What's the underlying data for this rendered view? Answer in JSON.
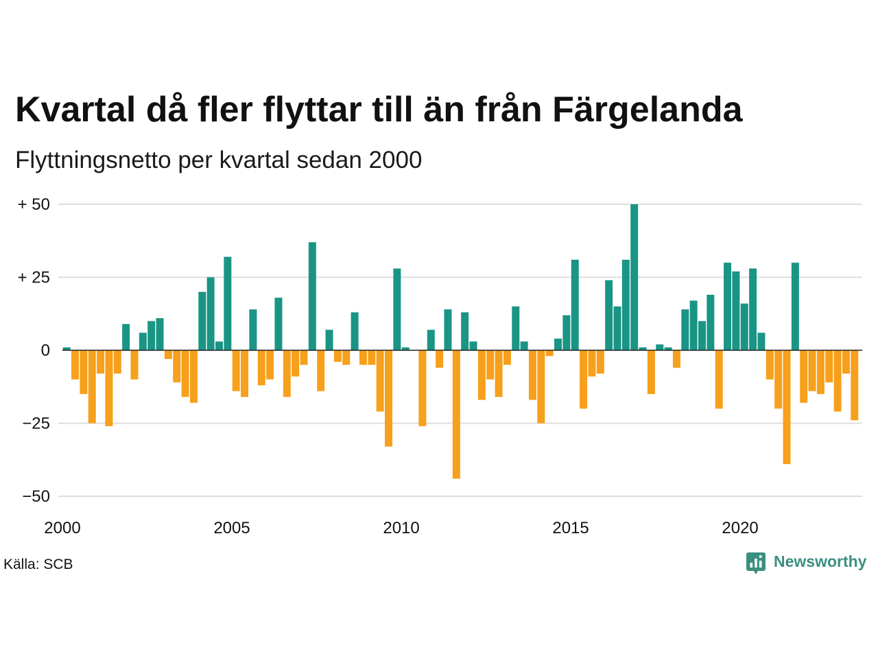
{
  "chart_data": {
    "type": "bar",
    "title": "Kvartal då fler flyttar till än från Färgelanda",
    "subtitle": "Flyttningsnetto per kvartal sedan 2000",
    "xlim": [
      2000,
      2023.5
    ],
    "ylim": [
      -50,
      50
    ],
    "grid": true,
    "legend": "none",
    "xticks": [
      {
        "value": 2000,
        "label": "2000"
      },
      {
        "value": 2005,
        "label": "2005"
      },
      {
        "value": 2010,
        "label": "2010"
      },
      {
        "value": 2015,
        "label": "2015"
      },
      {
        "value": 2020,
        "label": "2020"
      }
    ],
    "yticks": [
      {
        "value": 50,
        "label": "+ 50"
      },
      {
        "value": 25,
        "label": "+ 25"
      },
      {
        "value": 0,
        "label": "0"
      },
      {
        "value": -25,
        "label": "−25"
      },
      {
        "value": -50,
        "label": "−50"
      }
    ],
    "colors": {
      "positive": "#1a9585",
      "negative": "#f7a01c",
      "grid": "#dddddd",
      "zero_line": "#222222"
    },
    "points": [
      {
        "year": 2000,
        "quarter": 1,
        "value": 1
      },
      {
        "year": 2000,
        "quarter": 2,
        "value": -10
      },
      {
        "year": 2000,
        "quarter": 3,
        "value": -15
      },
      {
        "year": 2000,
        "quarter": 4,
        "value": -25
      },
      {
        "year": 2001,
        "quarter": 1,
        "value": -8
      },
      {
        "year": 2001,
        "quarter": 2,
        "value": -26
      },
      {
        "year": 2001,
        "quarter": 3,
        "value": -8
      },
      {
        "year": 2001,
        "quarter": 4,
        "value": 9
      },
      {
        "year": 2002,
        "quarter": 1,
        "value": -10
      },
      {
        "year": 2002,
        "quarter": 2,
        "value": 6
      },
      {
        "year": 2002,
        "quarter": 3,
        "value": 10
      },
      {
        "year": 2002,
        "quarter": 4,
        "value": 11
      },
      {
        "year": 2003,
        "quarter": 1,
        "value": -3
      },
      {
        "year": 2003,
        "quarter": 2,
        "value": -11
      },
      {
        "year": 2003,
        "quarter": 3,
        "value": -16
      },
      {
        "year": 2003,
        "quarter": 4,
        "value": -18
      },
      {
        "year": 2004,
        "quarter": 1,
        "value": 20
      },
      {
        "year": 2004,
        "quarter": 2,
        "value": 25
      },
      {
        "year": 2004,
        "quarter": 3,
        "value": 3
      },
      {
        "year": 2004,
        "quarter": 4,
        "value": 32
      },
      {
        "year": 2005,
        "quarter": 1,
        "value": -14
      },
      {
        "year": 2005,
        "quarter": 2,
        "value": -16
      },
      {
        "year": 2005,
        "quarter": 3,
        "value": 14
      },
      {
        "year": 2005,
        "quarter": 4,
        "value": -12
      },
      {
        "year": 2006,
        "quarter": 1,
        "value": -10
      },
      {
        "year": 2006,
        "quarter": 2,
        "value": 18
      },
      {
        "year": 2006,
        "quarter": 3,
        "value": -16
      },
      {
        "year": 2006,
        "quarter": 4,
        "value": -9
      },
      {
        "year": 2007,
        "quarter": 1,
        "value": -5
      },
      {
        "year": 2007,
        "quarter": 2,
        "value": 37
      },
      {
        "year": 2007,
        "quarter": 3,
        "value": -14
      },
      {
        "year": 2007,
        "quarter": 4,
        "value": 7
      },
      {
        "year": 2008,
        "quarter": 1,
        "value": -4
      },
      {
        "year": 2008,
        "quarter": 2,
        "value": -5
      },
      {
        "year": 2008,
        "quarter": 3,
        "value": 13
      },
      {
        "year": 2008,
        "quarter": 4,
        "value": -5
      },
      {
        "year": 2009,
        "quarter": 1,
        "value": -5
      },
      {
        "year": 2009,
        "quarter": 2,
        "value": -21
      },
      {
        "year": 2009,
        "quarter": 3,
        "value": -33
      },
      {
        "year": 2009,
        "quarter": 4,
        "value": 28
      },
      {
        "year": 2010,
        "quarter": 1,
        "value": 1
      },
      {
        "year": 2010,
        "quarter": 2,
        "value": 0
      },
      {
        "year": 2010,
        "quarter": 3,
        "value": -26
      },
      {
        "year": 2010,
        "quarter": 4,
        "value": 7
      },
      {
        "year": 2011,
        "quarter": 1,
        "value": -6
      },
      {
        "year": 2011,
        "quarter": 2,
        "value": 14
      },
      {
        "year": 2011,
        "quarter": 3,
        "value": -44
      },
      {
        "year": 2011,
        "quarter": 4,
        "value": 13
      },
      {
        "year": 2012,
        "quarter": 1,
        "value": 3
      },
      {
        "year": 2012,
        "quarter": 2,
        "value": -17
      },
      {
        "year": 2012,
        "quarter": 3,
        "value": -10
      },
      {
        "year": 2012,
        "quarter": 4,
        "value": -16
      },
      {
        "year": 2013,
        "quarter": 1,
        "value": -5
      },
      {
        "year": 2013,
        "quarter": 2,
        "value": 15
      },
      {
        "year": 2013,
        "quarter": 3,
        "value": 3
      },
      {
        "year": 2013,
        "quarter": 4,
        "value": -17
      },
      {
        "year": 2014,
        "quarter": 1,
        "value": -25
      },
      {
        "year": 2014,
        "quarter": 2,
        "value": -2
      },
      {
        "year": 2014,
        "quarter": 3,
        "value": 4
      },
      {
        "year": 2014,
        "quarter": 4,
        "value": 12
      },
      {
        "year": 2015,
        "quarter": 1,
        "value": 31
      },
      {
        "year": 2015,
        "quarter": 2,
        "value": -20
      },
      {
        "year": 2015,
        "quarter": 3,
        "value": -9
      },
      {
        "year": 2015,
        "quarter": 4,
        "value": -8
      },
      {
        "year": 2016,
        "quarter": 1,
        "value": 24
      },
      {
        "year": 2016,
        "quarter": 2,
        "value": 15
      },
      {
        "year": 2016,
        "quarter": 3,
        "value": 31
      },
      {
        "year": 2016,
        "quarter": 4,
        "value": 50
      },
      {
        "year": 2017,
        "quarter": 1,
        "value": 1
      },
      {
        "year": 2017,
        "quarter": 2,
        "value": -15
      },
      {
        "year": 2017,
        "quarter": 3,
        "value": 2
      },
      {
        "year": 2017,
        "quarter": 4,
        "value": 1
      },
      {
        "year": 2018,
        "quarter": 1,
        "value": -6
      },
      {
        "year": 2018,
        "quarter": 2,
        "value": 14
      },
      {
        "year": 2018,
        "quarter": 3,
        "value": 17
      },
      {
        "year": 2018,
        "quarter": 4,
        "value": 10
      },
      {
        "year": 2019,
        "quarter": 1,
        "value": 19
      },
      {
        "year": 2019,
        "quarter": 2,
        "value": -20
      },
      {
        "year": 2019,
        "quarter": 3,
        "value": 30
      },
      {
        "year": 2019,
        "quarter": 4,
        "value": 27
      },
      {
        "year": 2020,
        "quarter": 1,
        "value": 16
      },
      {
        "year": 2020,
        "quarter": 2,
        "value": 28
      },
      {
        "year": 2020,
        "quarter": 3,
        "value": 6
      },
      {
        "year": 2020,
        "quarter": 4,
        "value": -10
      },
      {
        "year": 2021,
        "quarter": 1,
        "value": -20
      },
      {
        "year": 2021,
        "quarter": 2,
        "value": -39
      },
      {
        "year": 2021,
        "quarter": 3,
        "value": 30
      },
      {
        "year": 2021,
        "quarter": 4,
        "value": -18
      },
      {
        "year": 2022,
        "quarter": 1,
        "value": -14
      },
      {
        "year": 2022,
        "quarter": 2,
        "value": -15
      },
      {
        "year": 2022,
        "quarter": 3,
        "value": -11
      },
      {
        "year": 2022,
        "quarter": 4,
        "value": -21
      },
      {
        "year": 2023,
        "quarter": 1,
        "value": -8
      },
      {
        "year": 2023,
        "quarter": 2,
        "value": -24
      }
    ]
  },
  "source": "Källa: SCB",
  "brand": {
    "name": "Newsworthy",
    "icon": "newsworthy-chart-bubble-icon",
    "color": "#3b8f80"
  }
}
